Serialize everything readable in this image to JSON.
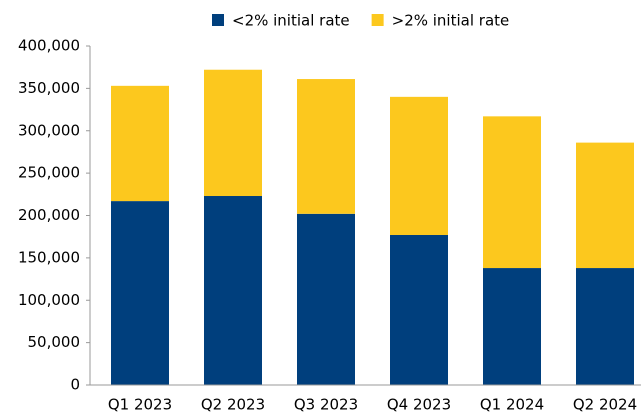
{
  "chart_data": {
    "type": "stacked_bar",
    "categories": [
      "Q1 2023",
      "Q2 2023",
      "Q3 2023",
      "Q4 2023",
      "Q1 2024",
      "Q2 2024"
    ],
    "series": [
      {
        "name": "<2% initial rate",
        "color": "#003f7d",
        "values": [
          217000,
          223000,
          202000,
          177000,
          138000,
          138000
        ]
      },
      {
        "name": ">2% initial rate",
        "color": "#fcc81e",
        "values": [
          136000,
          149000,
          159000,
          163000,
          179000,
          148000
        ]
      }
    ],
    "ylim": [
      0,
      400000
    ],
    "yticks": [
      0,
      {
        "value": 50000,
        "label": "50,000"
      },
      {
        "value": 100000,
        "label": "100,000"
      },
      {
        "value": 150000,
        "label": "150,000"
      },
      {
        "value": 200000,
        "label": "200,000"
      },
      {
        "value": 250000,
        "label": "250,000"
      },
      {
        "value": 300000,
        "label": "300,000"
      },
      {
        "value": 350000,
        "label": "350,000"
      },
      {
        "value": 400000,
        "label": "400,000"
      }
    ],
    "grid": false,
    "legend": "top"
  }
}
